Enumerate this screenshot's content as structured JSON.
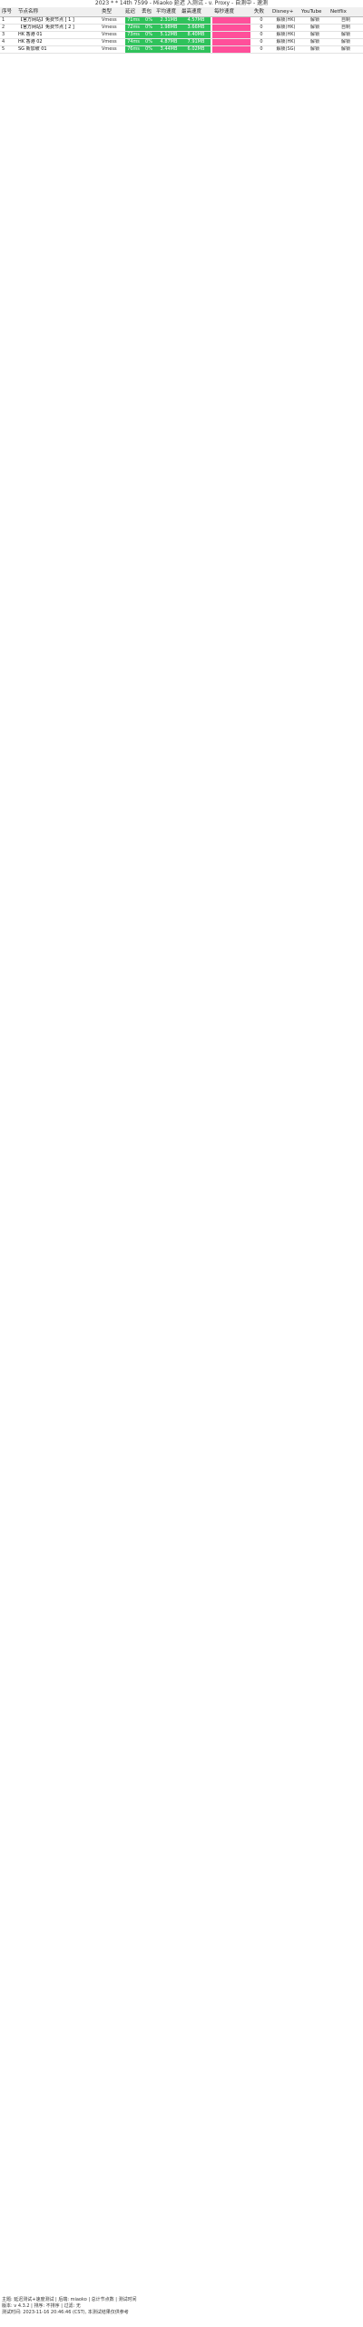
{
  "title": "2023 * * 14th 7599 - Miaoko 延迟 入测试 - v. Proxy - 自测中 - 速测",
  "columns": {
    "index": "序号",
    "node": "节点名称",
    "type": "类型",
    "latency": "延迟",
    "loss": "丢包",
    "avg_speed": "平均速度",
    "max_speed": "最高速度",
    "speed_bar": "每秒速度",
    "fail": "失败",
    "disney": "Disney+",
    "youtube": "YouTube",
    "netflix": "Netflix"
  },
  "rows": [
    {
      "index": "1",
      "name": "【官方网站】免费节点 [ 1 ]",
      "type": "Vmess",
      "latency": "71ms",
      "loss": "0%",
      "avg": "2.31MB",
      "max": "4.57MB",
      "fail": "0",
      "disney": "解锁(HK)",
      "youtube": "解锁",
      "netflix": "自制"
    },
    {
      "index": "2",
      "name": "【官方网站】免费节点 [ 2 ]",
      "type": "Vmess",
      "latency": "72ms",
      "loss": "0%",
      "avg": "1.98MB",
      "max": "3.66MB",
      "fail": "0",
      "disney": "解锁(HK)",
      "youtube": "解锁",
      "netflix": "自制"
    },
    {
      "index": "3",
      "name": "HK 香港 01",
      "type": "Vmess",
      "latency": "73ms",
      "loss": "0%",
      "avg": "5.12MB",
      "max": "8.40MB",
      "fail": "0",
      "disney": "解锁(HK)",
      "youtube": "解锁",
      "netflix": "解锁"
    },
    {
      "index": "4",
      "name": "HK 香港 02",
      "type": "Vmess",
      "latency": "74ms",
      "loss": "0%",
      "avg": "4.87MB",
      "max": "7.91MB",
      "fail": "0",
      "disney": "解锁(HK)",
      "youtube": "解锁",
      "netflix": "解锁"
    },
    {
      "index": "5",
      "name": "SG 新加坡 01",
      "type": "Vmess",
      "latency": "76ms",
      "loss": "0%",
      "avg": "3.44MB",
      "max": "6.02MB",
      "fail": "0",
      "disney": "解锁(SG)",
      "youtube": "解锁",
      "netflix": "解锁"
    }
  ],
  "footer": [
    "主题: 延迟测试+速度测试 | 后端: miaoko | 总计节点数 | 测试时间",
    "版本: v 4.3.2 | 排序: 不排序 | 过滤: 无",
    "测试时间: 2023-11-16 20:46:46 (CST), 本测试结果仅供参考"
  ]
}
